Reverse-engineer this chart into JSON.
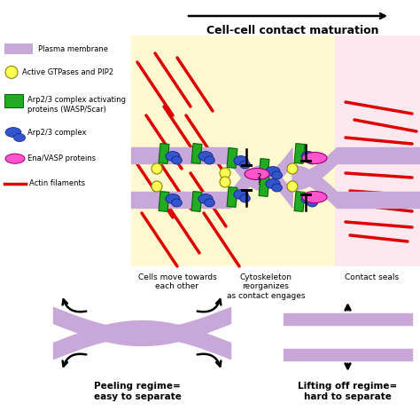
{
  "title": "Cell-cell contact maturation",
  "bg_color": "#ffffff",
  "membrane_color": "#c8a8d8",
  "yellow_box_color": "#fff8d0",
  "pink_box_color": "#fce8ee",
  "actin_color": "#dd0000",
  "arp_complex_color": "#3355cc",
  "wasp_color": "#22aa22",
  "gtpase_color": "#ffff55",
  "ena_color": "#ff55cc",
  "label_cells_move": "Cells move towards\neach other",
  "label_cytoskeleton": "Cytoskeleton\nreorganizes\nas contact engages",
  "label_contact": "Contact seals",
  "label_peeling": "Peeling regime=\neasy to separate",
  "label_lifting": "Lifting off regime=\nhard to separate",
  "arrow_color": "#000000"
}
